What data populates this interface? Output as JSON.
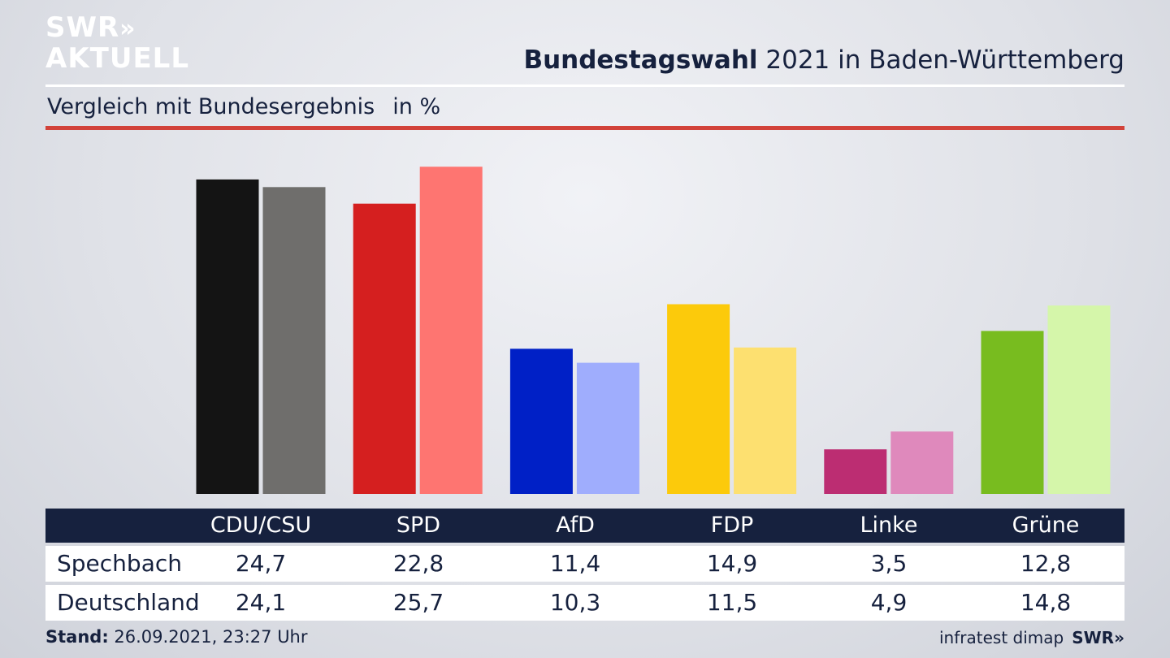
{
  "logo": {
    "line1": "SWR",
    "line2": "AKTUELL",
    "chevrons": "»"
  },
  "header": {
    "title_bold": "Bundestagswahl",
    "title_rest": "2021 in Baden-Württemberg",
    "subtitle": "Vergleich mit Bundesergebnis",
    "unit": "in %"
  },
  "colors": {
    "accent_line": "#d2423a",
    "table_header": "#16213e"
  },
  "chart_data": {
    "type": "bar",
    "categories": [
      "CDU/CSU",
      "SPD",
      "AfD",
      "FDP",
      "Linke",
      "Grüne"
    ],
    "series": [
      {
        "name": "Spechbach",
        "values": [
          24.7,
          22.8,
          11.4,
          14.9,
          3.5,
          12.8
        ],
        "colors": [
          "#141414",
          "#d51f1f",
          "#0020c6",
          "#fcca0b",
          "#bc2d72",
          "#78bc1f"
        ]
      },
      {
        "name": "Deutschland",
        "values": [
          24.1,
          25.7,
          10.3,
          11.5,
          4.9,
          14.8
        ],
        "colors": [
          "#6f6e6c",
          "#fe7571",
          "#9fadfd",
          "#fde070",
          "#df89bc",
          "#d5f6aa"
        ]
      }
    ],
    "ylim": [
      0,
      26.8
    ],
    "grid": false,
    "legend": "table-below"
  },
  "table": {
    "headers": [
      "CDU/CSU",
      "SPD",
      "AfD",
      "FDP",
      "Linke",
      "Grüne"
    ],
    "rows": [
      {
        "label": "Spechbach",
        "values": [
          "24,7",
          "22,8",
          "11,4",
          "14,9",
          "3,5",
          "12,8"
        ]
      },
      {
        "label": "Deutschland",
        "values": [
          "24,1",
          "25,7",
          "10,3",
          "11,5",
          "4,9",
          "14,8"
        ]
      }
    ]
  },
  "footer": {
    "stand_label": "Stand:",
    "stand_value": "26.09.2021, 23:27 Uhr",
    "source": "infratest dimap",
    "brand": "SWR»"
  }
}
